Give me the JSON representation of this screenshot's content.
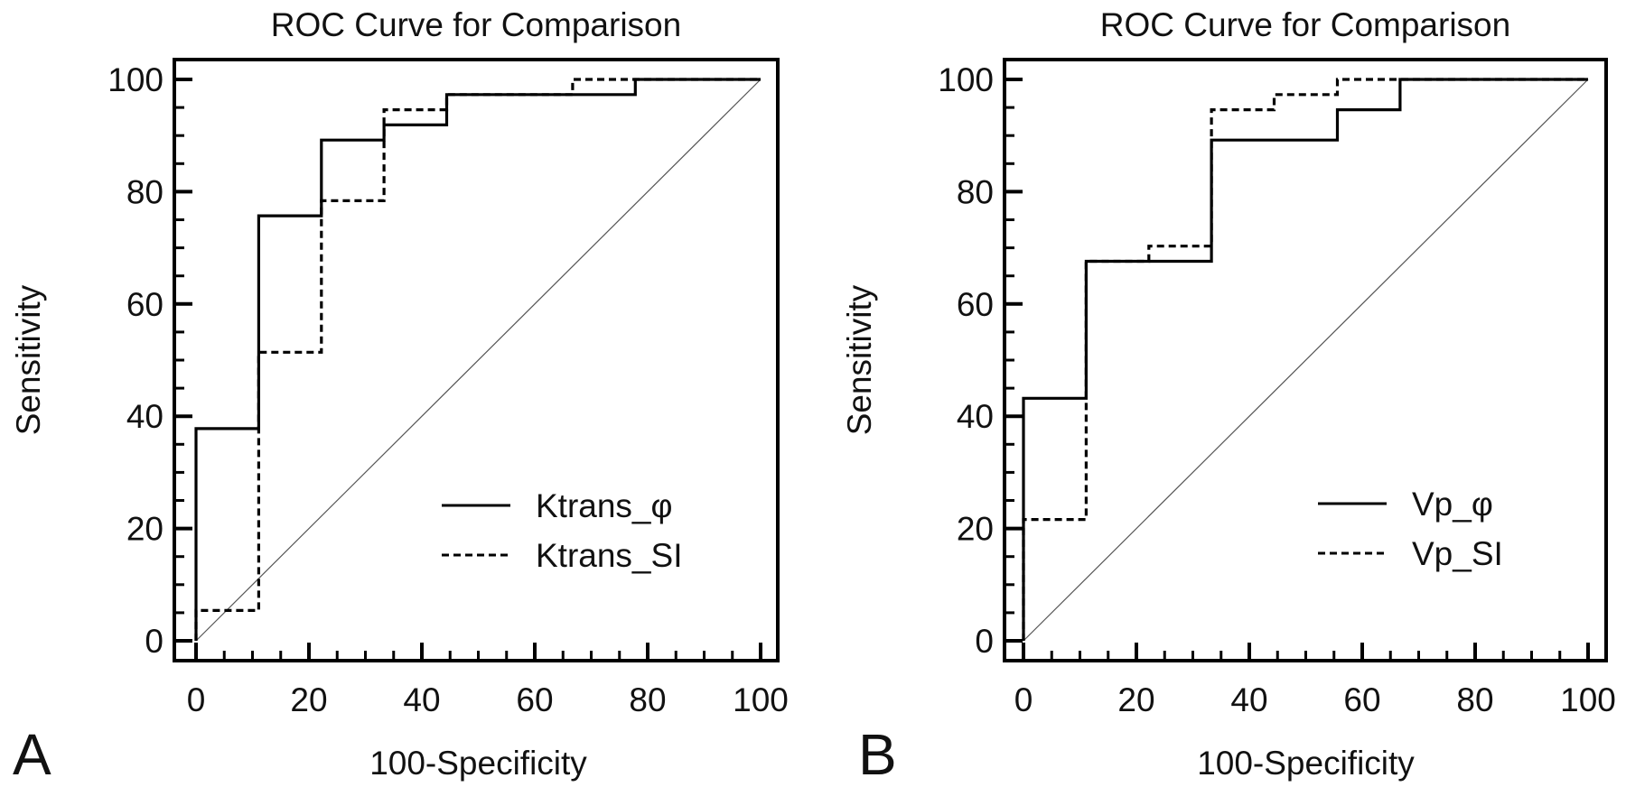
{
  "chart_data": [
    {
      "type": "line",
      "panel_label": "A",
      "title": "ROC Curve for Comparison",
      "xlabel": "100-Specificity",
      "ylabel": "Sensitivity",
      "xlim": [
        0,
        100
      ],
      "ylim": [
        0,
        100
      ],
      "xticks": [
        0,
        20,
        40,
        60,
        80,
        100
      ],
      "yticks": [
        0,
        20,
        40,
        60,
        80,
        100
      ],
      "grid": false,
      "legend_position": "bottom-right",
      "reference_line": {
        "name": "chance diagonal",
        "x": [
          0,
          100
        ],
        "y": [
          0,
          100
        ]
      },
      "series": [
        {
          "name": "Ktrans_φ",
          "style": "solid",
          "x": [
            0,
            0,
            11.1,
            11.1,
            22.2,
            22.2,
            33.3,
            33.3,
            44.4,
            44.4,
            77.8,
            77.8,
            100
          ],
          "y": [
            0,
            37.8,
            37.8,
            75.7,
            75.7,
            89.2,
            89.2,
            91.9,
            91.9,
            97.3,
            97.3,
            100,
            100
          ]
        },
        {
          "name": "Ktrans_SI",
          "style": "dashed",
          "x": [
            0,
            0,
            11.1,
            11.1,
            22.2,
            22.2,
            33.3,
            33.3,
            44.4,
            44.4,
            66.7,
            66.7,
            100
          ],
          "y": [
            0,
            5.4,
            5.4,
            51.4,
            51.4,
            78.4,
            78.4,
            94.6,
            94.6,
            97.3,
            97.3,
            100,
            100
          ]
        }
      ]
    },
    {
      "type": "line",
      "panel_label": "B",
      "title": "ROC Curve for Comparison",
      "xlabel": "100-Specificity",
      "ylabel": "Sensitivity",
      "xlim": [
        0,
        100
      ],
      "ylim": [
        0,
        100
      ],
      "xticks": [
        0,
        20,
        40,
        60,
        80,
        100
      ],
      "yticks": [
        0,
        20,
        40,
        60,
        80,
        100
      ],
      "grid": false,
      "legend_position": "bottom-right",
      "reference_line": {
        "name": "chance diagonal",
        "x": [
          0,
          100
        ],
        "y": [
          0,
          100
        ]
      },
      "series": [
        {
          "name": "Vp_φ",
          "style": "solid",
          "x": [
            0,
            0,
            11.1,
            11.1,
            33.3,
            33.3,
            55.6,
            55.6,
            66.7,
            66.7,
            100
          ],
          "y": [
            0,
            43.2,
            43.2,
            67.6,
            67.6,
            89.2,
            89.2,
            94.6,
            94.6,
            100,
            100
          ]
        },
        {
          "name": "Vp_SI",
          "style": "dashed",
          "x": [
            0,
            0,
            11.1,
            11.1,
            22.2,
            22.2,
            33.3,
            33.3,
            44.4,
            44.4,
            55.6,
            55.6,
            100
          ],
          "y": [
            0,
            21.6,
            21.6,
            67.6,
            67.6,
            70.3,
            70.3,
            94.6,
            94.6,
            97.3,
            97.3,
            100,
            100
          ]
        }
      ]
    }
  ]
}
